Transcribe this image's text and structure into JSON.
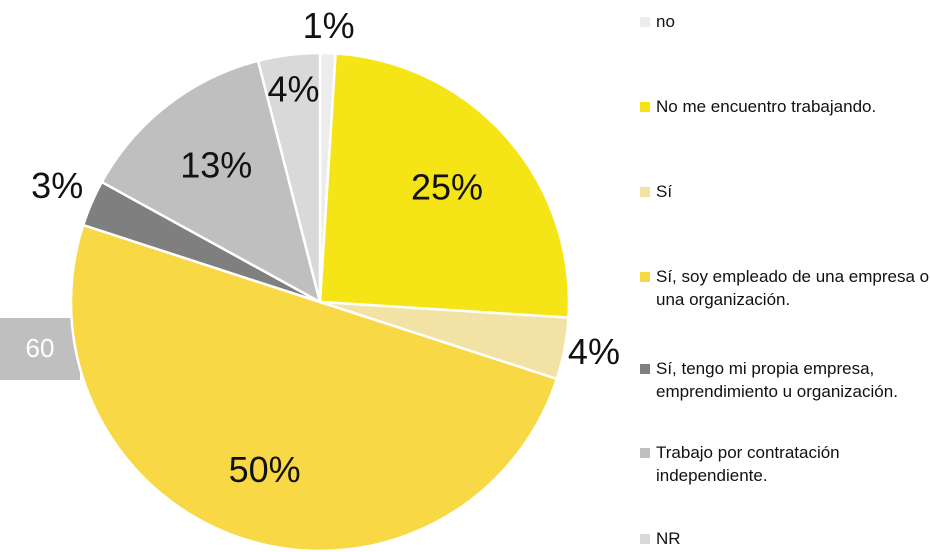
{
  "side_label": "60",
  "chart_data": {
    "type": "pie",
    "categories": [
      "no",
      "No me encuentro trabajando.",
      "Sí",
      "Sí, soy empleado de una empresa o una organización.",
      "Sí, tengo mi propia empresa, emprendimiento u organización.",
      "Trabajo por contratación independiente.",
      "NR"
    ],
    "values": [
      1,
      25,
      4,
      50,
      3,
      13,
      4
    ],
    "value_labels": [
      "1%",
      "25%",
      "4%",
      "50%",
      "3%",
      "13%",
      "4%"
    ],
    "colors": [
      "#ececec",
      "#f6e516",
      "#f2e2a4",
      "#f8d844",
      "#7f7f7f",
      "#bfbfbf",
      "#d9d9d9"
    ],
    "legend": "right"
  }
}
